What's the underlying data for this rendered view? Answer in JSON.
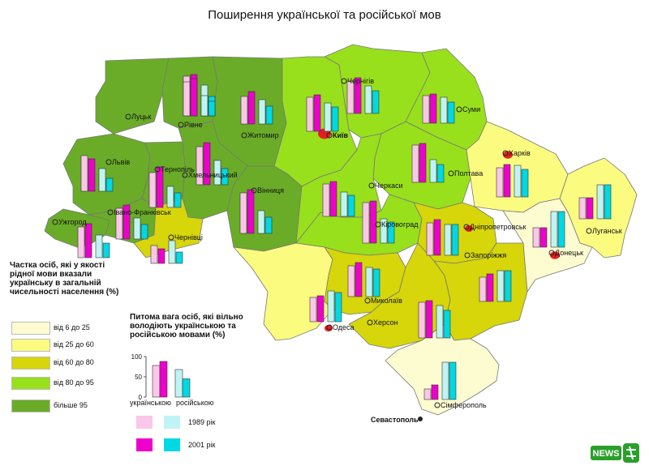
{
  "title": "Поширення української та російської мов",
  "colors": {
    "l1": "#fdfbd0",
    "l2": "#fbfb80",
    "l3": "#d6d60a",
    "l4": "#99e01c",
    "l5": "#6aac28",
    "ua1989": "#f9c8e8",
    "ua2001": "#ee00cc",
    "ru1989": "#c0f4f4",
    "ru2001": "#00d8e4",
    "capital": "#e02020"
  },
  "legend": {
    "title": "Частка осіб, які у якості рідної мови вказали українську в загальній чисельності населення (%)",
    "items": [
      {
        "label": "від 6 до 25",
        "color": "#fdfbd0"
      },
      {
        "label": "від 25 до 60",
        "color": "#fbfb80"
      },
      {
        "label": "від 60 до 80",
        "color": "#d6d60a"
      },
      {
        "label": "від 80 до 95",
        "color": "#99e01c"
      },
      {
        "label": "більше 95",
        "color": "#6aac28"
      }
    ]
  },
  "fluency_chart": {
    "title": "Питома вага осіб, які вільно володіють українською та російською мовами (%)",
    "y_ticks": [
      "100",
      "50",
      "0"
    ],
    "categories": [
      "українською",
      "російською"
    ],
    "values_1989": [
      78,
      68
    ],
    "values_2001": [
      88,
      45
    ]
  },
  "years": {
    "y1989": "1989 рік",
    "y2001": "2001 рік"
  },
  "city_labels": {
    "kyiv": "Київ",
    "lutsk": "Луцьк",
    "rivne": "Рівне",
    "zhytomyr": "Житомир",
    "chernihiv": "Чернігів",
    "sumy": "Суми",
    "lviv": "Львів",
    "ternopil": "Тернопіль",
    "khmelnytskyi": "Хмельницький",
    "vinnytsia": "Вінниця",
    "cherkasy": "Черкаси",
    "poltava": "Полтава",
    "kharkiv": "Харків",
    "uzhhorod": "Ужгород",
    "ivano_frankivsk": "Івано-Франківськ",
    "chernivtsi": "Чернівці",
    "kirovohrad": "Кіровоград",
    "dnipropetrovsk": "Дніпропетровськ",
    "zaporizhzhia": "Запоріжжя",
    "luhansk": "Луганськ",
    "donetsk": "Донецьк",
    "mykolaiv": "Миколаїв",
    "odesa": "Одеса",
    "kherson": "Херсон",
    "simferopol": "Сімферополь",
    "sevastopol": "Севастополь"
  },
  "logo_text": "NEWS"
}
